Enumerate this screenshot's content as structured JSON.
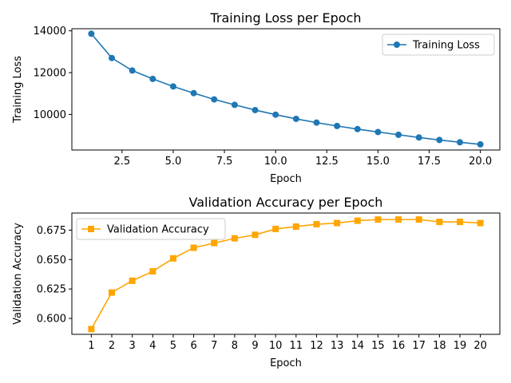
{
  "chart_data": [
    {
      "type": "line",
      "title": "Training Loss per Epoch",
      "xlabel": "Epoch",
      "ylabel": "Training Loss",
      "xlim": [
        0.05,
        20.95
      ],
      "ylim": [
        8300,
        14100
      ],
      "xticks": [
        2.5,
        5.0,
        7.5,
        10.0,
        12.5,
        15.0,
        17.5,
        20.0
      ],
      "xtick_labels": [
        "2.5",
        "5.0",
        "7.5",
        "10.0",
        "12.5",
        "15.0",
        "17.5",
        "20.0"
      ],
      "yticks": [
        10000,
        12000,
        14000
      ],
      "ytick_labels": [
        "10000",
        "12000",
        "14000"
      ],
      "grid": false,
      "legend": "upper right",
      "series": [
        {
          "name": "Training Loss",
          "color": "#1f77b4",
          "marker": "circle",
          "x": [
            1,
            2,
            3,
            4,
            5,
            6,
            7,
            8,
            9,
            10,
            11,
            12,
            13,
            14,
            15,
            16,
            17,
            18,
            19,
            20
          ],
          "values": [
            13860,
            12700,
            12100,
            11700,
            11340,
            11020,
            10720,
            10460,
            10210,
            9990,
            9790,
            9610,
            9450,
            9300,
            9160,
            9030,
            8900,
            8780,
            8670,
            8570
          ]
        }
      ]
    },
    {
      "type": "line",
      "title": "Validation Accuracy per Epoch",
      "xlabel": "Epoch",
      "ylabel": "Validation Accuracy",
      "xlim": [
        0.05,
        20.95
      ],
      "ylim": [
        0.5865,
        0.6895
      ],
      "xticks": [
        1,
        2,
        3,
        4,
        5,
        6,
        7,
        8,
        9,
        10,
        11,
        12,
        13,
        14,
        15,
        16,
        17,
        18,
        19,
        20
      ],
      "xtick_labels": [
        "1",
        "2",
        "3",
        "4",
        "5",
        "6",
        "7",
        "8",
        "9",
        "10",
        "11",
        "12",
        "13",
        "14",
        "15",
        "16",
        "17",
        "18",
        "19",
        "20"
      ],
      "yticks": [
        0.6,
        0.625,
        0.65,
        0.675
      ],
      "ytick_labels": [
        "0.600",
        "0.625",
        "0.650",
        "0.675"
      ],
      "grid": false,
      "legend": "upper left",
      "series": [
        {
          "name": "Validation Accuracy",
          "color": "#ffa500",
          "marker": "square",
          "x": [
            1,
            2,
            3,
            4,
            5,
            6,
            7,
            8,
            9,
            10,
            11,
            12,
            13,
            14,
            15,
            16,
            17,
            18,
            19,
            20
          ],
          "values": [
            0.591,
            0.622,
            0.632,
            0.64,
            0.651,
            0.66,
            0.664,
            0.668,
            0.671,
            0.676,
            0.678,
            0.68,
            0.681,
            0.683,
            0.684,
            0.684,
            0.684,
            0.682,
            0.682,
            0.681
          ]
        }
      ]
    }
  ]
}
